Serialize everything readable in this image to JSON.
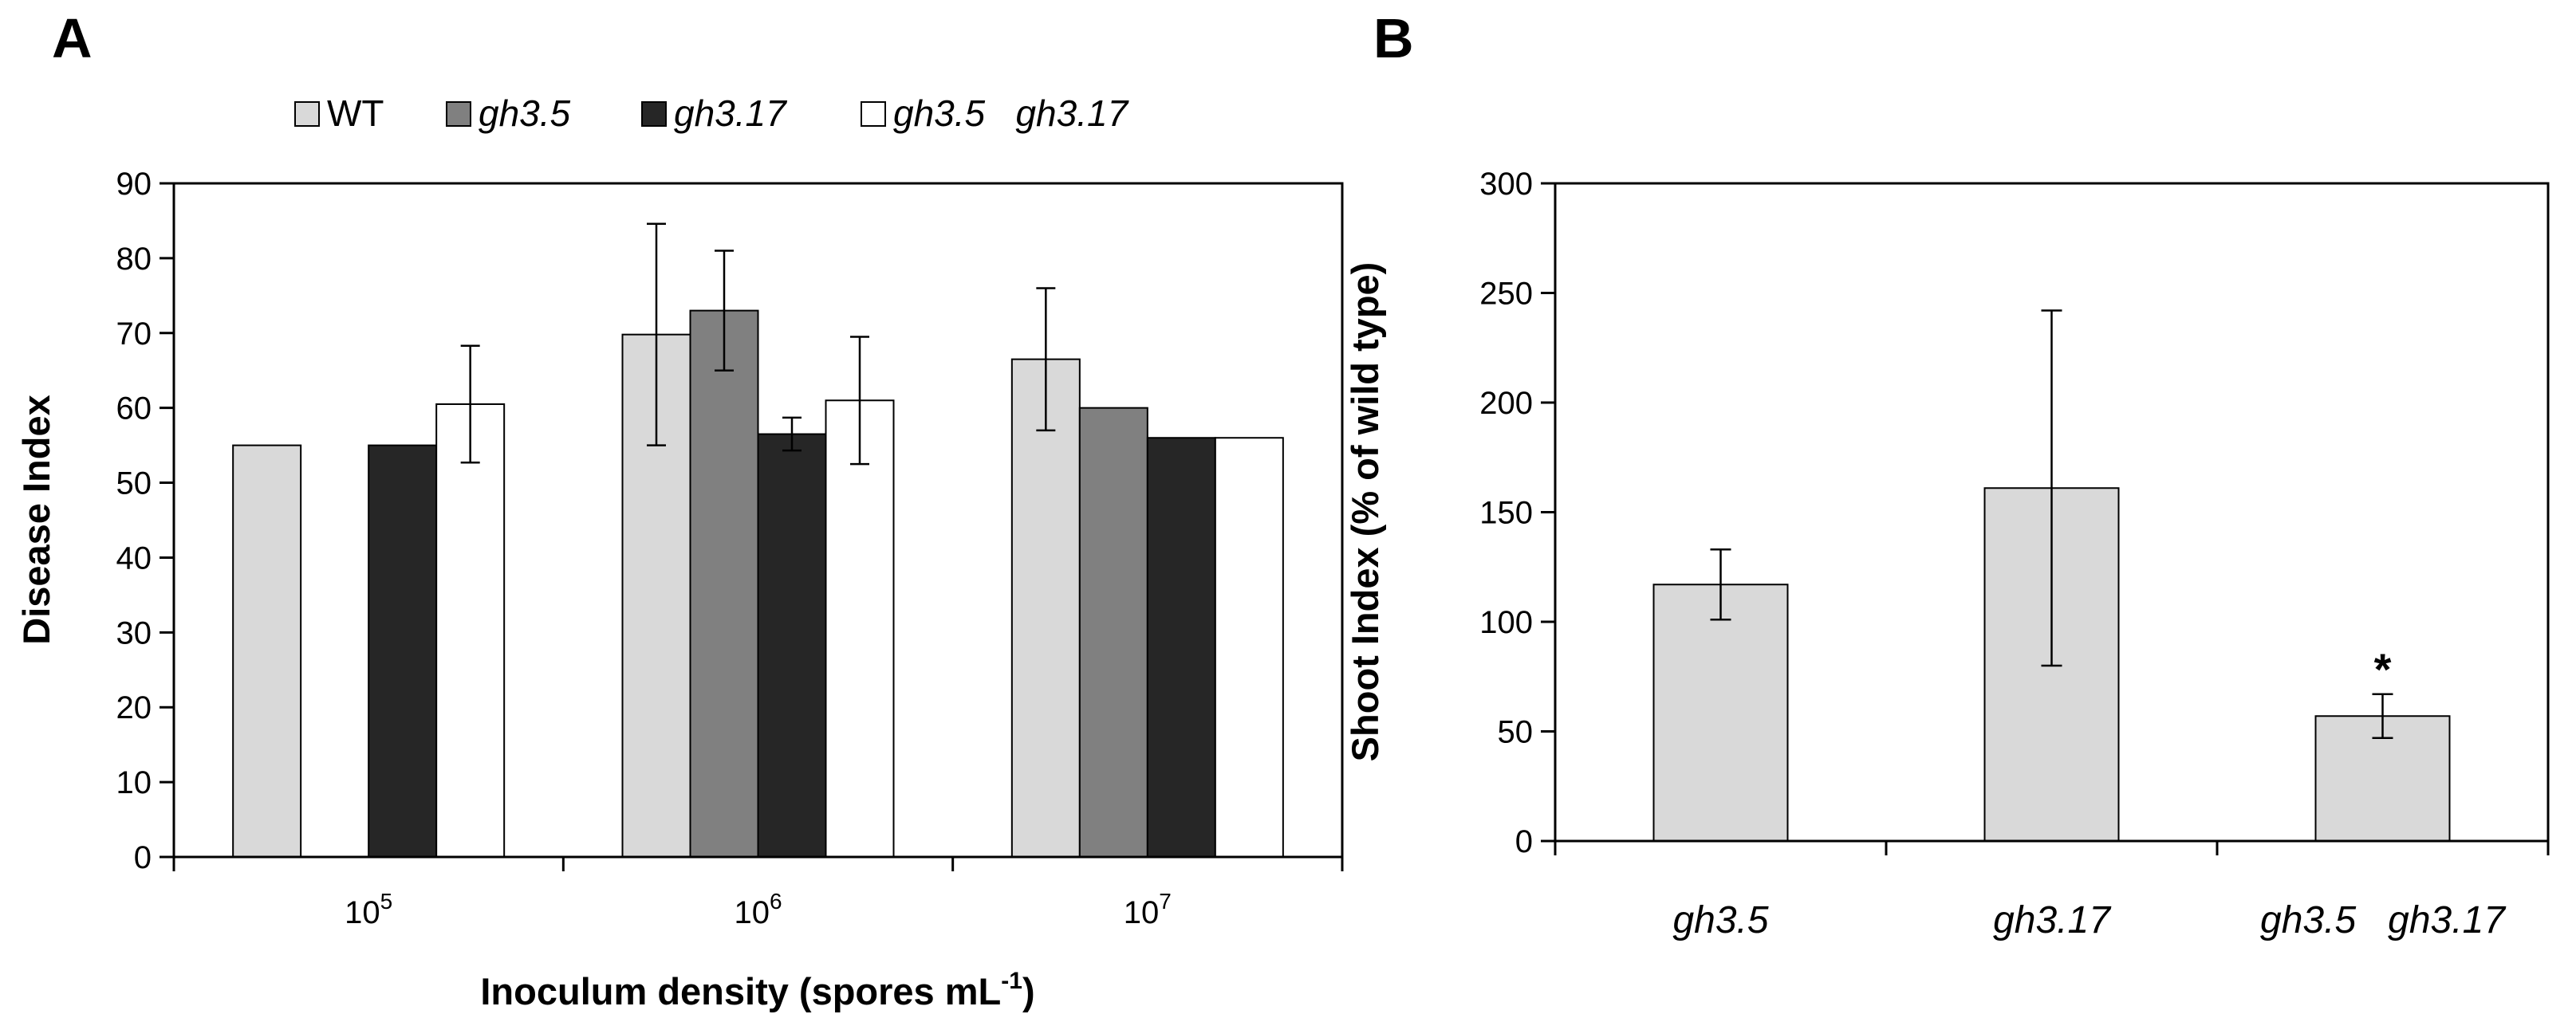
{
  "chart_data": [
    {
      "panel": "A",
      "type": "bar",
      "title": "",
      "xlabel": "Inoculum density (spores mL",
      "xlabel_sup": "-1",
      "xlabel_end": ")",
      "ylabel": "Disease Index",
      "ylim": [
        0,
        90
      ],
      "yticks": [
        "0",
        "10",
        "20",
        "30",
        "40",
        "50",
        "60",
        "70",
        "80",
        "90"
      ],
      "categories": [
        {
          "base": "10",
          "exp": "5"
        },
        {
          "base": "10",
          "exp": "6"
        },
        {
          "base": "10",
          "exp": "7"
        }
      ],
      "legend": "top",
      "series": [
        {
          "name": "WT",
          "italic": false,
          "color": "#d9d9d9",
          "values": [
            55,
            69.8,
            66.5
          ],
          "errors": [
            null,
            14.8,
            9.5
          ]
        },
        {
          "name": "gh3.5",
          "italic": true,
          "color": "#808080",
          "values": [
            null,
            73,
            60
          ],
          "errors": [
            null,
            8,
            null
          ]
        },
        {
          "name": "gh3.17",
          "italic": true,
          "color": "#262626",
          "values": [
            55,
            56.5,
            56
          ],
          "errors": [
            null,
            2.2,
            null
          ]
        },
        {
          "name": "gh3.5   gh3.17",
          "italic": true,
          "color": "#ffffff",
          "values": [
            60.5,
            61,
            56
          ],
          "errors": [
            7.8,
            8.5,
            null
          ]
        }
      ]
    },
    {
      "panel": "B",
      "type": "bar",
      "title": "",
      "xlabel": "",
      "ylabel": "Shoot Index (% of wild type)",
      "ylim": [
        0,
        300
      ],
      "yticks": [
        "0",
        "50",
        "100",
        "150",
        "200",
        "250",
        "300"
      ],
      "categories": [
        "gh3.5",
        "gh3.17",
        "gh3.5   gh3.17"
      ],
      "series": [
        {
          "name": "",
          "color": "#d9d9d9",
          "values": [
            117,
            161,
            57
          ],
          "errors": [
            16,
            81,
            10
          ]
        }
      ],
      "annotations": [
        {
          "category_index": 2,
          "text": "*"
        }
      ]
    }
  ]
}
